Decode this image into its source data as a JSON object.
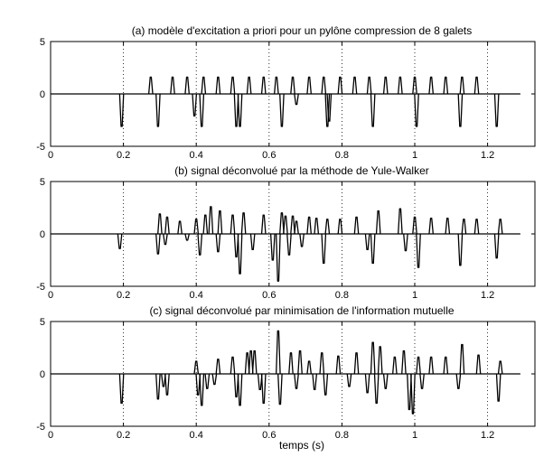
{
  "chart_data": [
    {
      "type": "line",
      "title": "(a) modèle d'excitation a priori pour un pylône compression de 8 galets",
      "xlim": [
        0,
        1.33
      ],
      "ylim": [
        -5,
        5
      ],
      "xticks": [
        "0",
        "0.2",
        "0.4",
        "0.6",
        "0.8",
        "1",
        "1.2"
      ],
      "yticks": [
        "5",
        "0",
        "-5"
      ],
      "grid": "vertical dotted lines at x ticks",
      "series": [
        {
          "color": "#000000",
          "spikes": [
            {
              "x": 0.195,
              "y": -3.1
            },
            {
              "x": 0.275,
              "y": 1.6
            },
            {
              "x": 0.295,
              "y": -3.1
            },
            {
              "x": 0.335,
              "y": 1.6
            },
            {
              "x": 0.375,
              "y": 1.6
            },
            {
              "x": 0.395,
              "y": -2.1
            },
            {
              "x": 0.415,
              "y": -3.1
            },
            {
              "x": 0.42,
              "y": 1.6
            },
            {
              "x": 0.46,
              "y": 1.6
            },
            {
              "x": 0.5,
              "y": 1.6
            },
            {
              "x": 0.51,
              "y": -3.1
            },
            {
              "x": 0.52,
              "y": -3.1
            },
            {
              "x": 0.545,
              "y": 1.6
            },
            {
              "x": 0.585,
              "y": 1.6
            },
            {
              "x": 0.62,
              "y": 1.6
            },
            {
              "x": 0.635,
              "y": -3.1
            },
            {
              "x": 0.665,
              "y": 1.6
            },
            {
              "x": 0.675,
              "y": -1.0
            },
            {
              "x": 0.71,
              "y": 1.6
            },
            {
              "x": 0.75,
              "y": 1.6
            },
            {
              "x": 0.76,
              "y": -3.1
            },
            {
              "x": 0.765,
              "y": -2.6
            },
            {
              "x": 0.795,
              "y": 1.6
            },
            {
              "x": 0.835,
              "y": 1.6
            },
            {
              "x": 0.875,
              "y": 1.6
            },
            {
              "x": 0.885,
              "y": -3.1
            },
            {
              "x": 0.92,
              "y": 1.6
            },
            {
              "x": 0.96,
              "y": 1.6
            },
            {
              "x": 1.0,
              "y": 1.6
            },
            {
              "x": 1.005,
              "y": -3.1
            },
            {
              "x": 1.045,
              "y": 1.6
            },
            {
              "x": 1.085,
              "y": 1.6
            },
            {
              "x": 1.125,
              "y": -3.1
            },
            {
              "x": 1.13,
              "y": 1.6
            },
            {
              "x": 1.17,
              "y": 1.6
            },
            {
              "x": 1.225,
              "y": -3.1
            }
          ]
        }
      ]
    },
    {
      "type": "line",
      "title": "(b) signal déconvolué par la méthode de Yule-Walker",
      "xlim": [
        0,
        1.33
      ],
      "ylim": [
        -5,
        5
      ],
      "xticks": [
        "0",
        "0.2",
        "0.4",
        "0.6",
        "0.8",
        "1",
        "1.2"
      ],
      "yticks": [
        "5",
        "0",
        "-5"
      ],
      "grid": "vertical dotted lines at x ticks",
      "series": [
        {
          "color": "#000000",
          "spikes": [
            {
              "x": 0.19,
              "y": -1.4
            },
            {
              "x": 0.295,
              "y": -1.9
            },
            {
              "x": 0.3,
              "y": 1.9
            },
            {
              "x": 0.315,
              "y": -1.0
            },
            {
              "x": 0.32,
              "y": 1.6
            },
            {
              "x": 0.355,
              "y": 1.2
            },
            {
              "x": 0.375,
              "y": -0.6
            },
            {
              "x": 0.4,
              "y": 1.4
            },
            {
              "x": 0.41,
              "y": -2.0
            },
            {
              "x": 0.425,
              "y": 1.8
            },
            {
              "x": 0.44,
              "y": 2.6
            },
            {
              "x": 0.46,
              "y": -1.7
            },
            {
              "x": 0.465,
              "y": 2.2
            },
            {
              "x": 0.5,
              "y": 1.8
            },
            {
              "x": 0.51,
              "y": -2.2
            },
            {
              "x": 0.52,
              "y": -3.8
            },
            {
              "x": 0.53,
              "y": 2.0
            },
            {
              "x": 0.555,
              "y": -1.5
            },
            {
              "x": 0.585,
              "y": 1.8
            },
            {
              "x": 0.61,
              "y": -2.5
            },
            {
              "x": 0.625,
              "y": -4.5
            },
            {
              "x": 0.635,
              "y": 2.0
            },
            {
              "x": 0.645,
              "y": 1.7
            },
            {
              "x": 0.655,
              "y": -2.0
            },
            {
              "x": 0.665,
              "y": 1.7
            },
            {
              "x": 0.675,
              "y": 1.2
            },
            {
              "x": 0.69,
              "y": -1.2
            },
            {
              "x": 0.71,
              "y": 1.6
            },
            {
              "x": 0.73,
              "y": 1.5
            },
            {
              "x": 0.75,
              "y": -2.8
            },
            {
              "x": 0.76,
              "y": 1.4
            },
            {
              "x": 0.795,
              "y": 1.4
            },
            {
              "x": 0.84,
              "y": 1.6
            },
            {
              "x": 0.87,
              "y": -1.5
            },
            {
              "x": 0.885,
              "y": -2.8
            },
            {
              "x": 0.9,
              "y": 2.2
            },
            {
              "x": 0.96,
              "y": 2.4
            },
            {
              "x": 0.975,
              "y": -1.6
            },
            {
              "x": 1.0,
              "y": 1.6
            },
            {
              "x": 1.01,
              "y": -3.2
            },
            {
              "x": 1.045,
              "y": 1.5
            },
            {
              "x": 1.09,
              "y": 1.5
            },
            {
              "x": 1.125,
              "y": -3.0
            },
            {
              "x": 1.135,
              "y": 1.4
            },
            {
              "x": 1.17,
              "y": 1.4
            },
            {
              "x": 1.225,
              "y": -2.3
            },
            {
              "x": 1.235,
              "y": 1.4
            }
          ]
        }
      ]
    },
    {
      "type": "line",
      "title": "(c) signal déconvolué par minimisation de l'information mutuelle",
      "xlabel": "temps (s)",
      "xlim": [
        0,
        1.33
      ],
      "ylim": [
        -5,
        5
      ],
      "xticks": [
        "0",
        "0.2",
        "0.4",
        "0.6",
        "0.8",
        "1",
        "1.2"
      ],
      "yticks": [
        "5",
        "0",
        "-5"
      ],
      "grid": "vertical dotted lines at x ticks",
      "series": [
        {
          "color": "#000000",
          "spikes": [
            {
              "x": 0.195,
              "y": -2.8
            },
            {
              "x": 0.295,
              "y": -2.4
            },
            {
              "x": 0.31,
              "y": -1.2
            },
            {
              "x": 0.32,
              "y": -2.0
            },
            {
              "x": 0.4,
              "y": 1.2
            },
            {
              "x": 0.405,
              "y": -2.0
            },
            {
              "x": 0.415,
              "y": -3.0
            },
            {
              "x": 0.43,
              "y": -1.4
            },
            {
              "x": 0.45,
              "y": -1.0
            },
            {
              "x": 0.46,
              "y": 1.4
            },
            {
              "x": 0.5,
              "y": 1.6
            },
            {
              "x": 0.51,
              "y": -2.2
            },
            {
              "x": 0.52,
              "y": -3.0
            },
            {
              "x": 0.54,
              "y": 2.0
            },
            {
              "x": 0.55,
              "y": 2.2
            },
            {
              "x": 0.56,
              "y": 2.2
            },
            {
              "x": 0.575,
              "y": -1.5
            },
            {
              "x": 0.585,
              "y": -2.8
            },
            {
              "x": 0.625,
              "y": 4.1
            },
            {
              "x": 0.63,
              "y": -2.9
            },
            {
              "x": 0.66,
              "y": 2.0
            },
            {
              "x": 0.675,
              "y": -1.4
            },
            {
              "x": 0.685,
              "y": 2.2
            },
            {
              "x": 0.71,
              "y": 1.2
            },
            {
              "x": 0.725,
              "y": -1.5
            },
            {
              "x": 0.745,
              "y": 2.0
            },
            {
              "x": 0.755,
              "y": -2.0
            },
            {
              "x": 0.79,
              "y": 1.7
            },
            {
              "x": 0.82,
              "y": -1.2
            },
            {
              "x": 0.84,
              "y": 2.0
            },
            {
              "x": 0.87,
              "y": -1.8
            },
            {
              "x": 0.885,
              "y": 3.0
            },
            {
              "x": 0.895,
              "y": -2.8
            },
            {
              "x": 0.905,
              "y": 2.6
            },
            {
              "x": 0.92,
              "y": -1.4
            },
            {
              "x": 0.945,
              "y": 1.6
            },
            {
              "x": 0.97,
              "y": 2.2
            },
            {
              "x": 0.985,
              "y": -3.4
            },
            {
              "x": 0.995,
              "y": -3.8
            },
            {
              "x": 1.01,
              "y": 1.6
            },
            {
              "x": 1.02,
              "y": -1.4
            },
            {
              "x": 1.045,
              "y": 1.6
            },
            {
              "x": 1.085,
              "y": 1.6
            },
            {
              "x": 1.12,
              "y": -1.4
            },
            {
              "x": 1.13,
              "y": 2.8
            },
            {
              "x": 1.175,
              "y": 1.8
            },
            {
              "x": 1.23,
              "y": -2.6
            },
            {
              "x": 1.235,
              "y": 1.2
            }
          ]
        }
      ]
    }
  ]
}
